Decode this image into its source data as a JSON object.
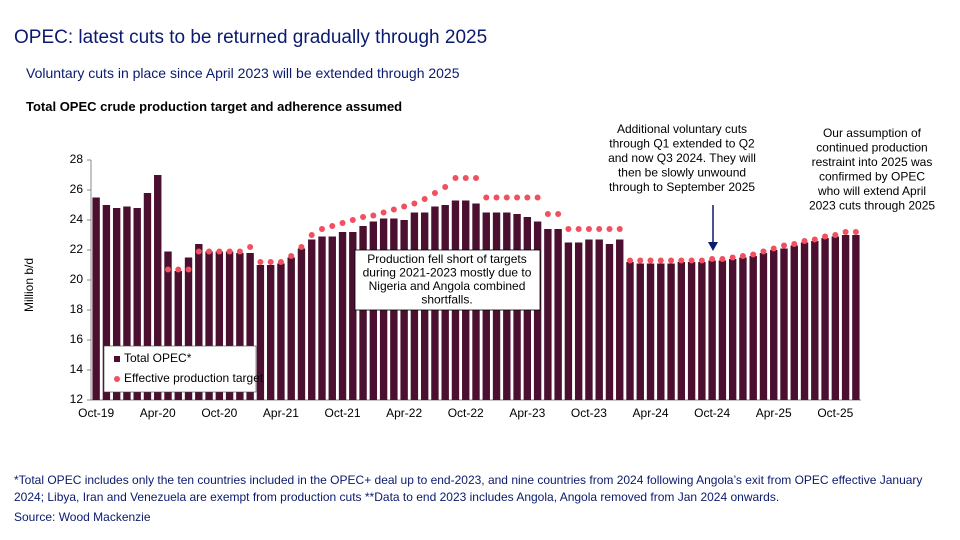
{
  "chart_data": {
    "type": "bar",
    "title": "OPEC: latest cuts to be returned gradually through 2025",
    "subtitle": "Voluntary cuts in place since April 2023 will be extended through 2025",
    "chart_title": "Total OPEC crude production target and adherence assumed",
    "y_label": "Million b/d",
    "categories": [
      "Oct-19",
      null,
      null,
      null,
      null,
      null,
      "Apr-20",
      null,
      null,
      null,
      null,
      null,
      "Oct-20",
      null,
      null,
      null,
      null,
      null,
      "Apr-21",
      null,
      null,
      null,
      null,
      null,
      "Oct-21",
      null,
      null,
      null,
      null,
      null,
      "Apr-22",
      null,
      null,
      null,
      null,
      null,
      "Oct-22",
      null,
      null,
      null,
      null,
      null,
      "Apr-23",
      null,
      null,
      null,
      null,
      null,
      "Oct-23",
      null,
      null,
      null,
      null,
      null,
      "Apr-24",
      null,
      null,
      null,
      null,
      null,
      "Oct-24",
      null,
      null,
      null,
      null,
      null,
      "Apr-25",
      null,
      null,
      null,
      null,
      null,
      "Oct-25",
      null,
      null
    ],
    "series": [
      {
        "name": "Total OPEC*",
        "color": "#4b0f2f",
        "kind": "bar",
        "values": [
          25.5,
          25.0,
          24.8,
          24.9,
          24.8,
          25.8,
          27.0,
          21.9,
          20.6,
          21.5,
          22.4,
          21.9,
          21.9,
          21.9,
          21.8,
          21.8,
          21.0,
          21.0,
          21.1,
          21.5,
          22.1,
          22.7,
          22.9,
          22.9,
          23.2,
          23.2,
          23.6,
          23.9,
          24.1,
          24.1,
          24.0,
          24.5,
          24.5,
          24.9,
          25.0,
          25.3,
          25.3,
          25.1,
          24.5,
          24.5,
          24.5,
          24.4,
          24.2,
          23.9,
          23.4,
          23.4,
          22.5,
          22.5,
          22.7,
          22.7,
          22.4,
          22.7,
          21.2,
          21.1,
          21.1,
          21.1,
          21.1,
          21.2,
          21.2,
          21.2,
          21.3,
          21.3,
          21.4,
          21.5,
          21.6,
          21.8,
          22.0,
          22.1,
          22.3,
          22.5,
          22.6,
          22.8,
          22.9,
          23.0,
          23.0
        ]
      },
      {
        "name": "Effective production target",
        "color": "#f0505f",
        "kind": "dot",
        "values": [
          null,
          null,
          null,
          null,
          null,
          null,
          null,
          20.7,
          20.7,
          20.7,
          21.9,
          21.9,
          21.9,
          21.9,
          21.9,
          22.2,
          21.2,
          21.2,
          21.2,
          21.6,
          22.2,
          23.0,
          23.4,
          23.6,
          23.8,
          24.0,
          24.2,
          24.3,
          24.5,
          24.7,
          24.9,
          25.1,
          25.4,
          25.8,
          26.2,
          26.8,
          26.8,
          26.8,
          25.5,
          25.5,
          25.5,
          25.5,
          25.5,
          25.5,
          24.4,
          24.4,
          23.4,
          23.4,
          23.4,
          23.4,
          23.4,
          23.4,
          21.3,
          21.3,
          21.3,
          21.3,
          21.3,
          21.3,
          21.3,
          21.3,
          21.4,
          21.4,
          21.5,
          21.6,
          21.7,
          21.9,
          22.1,
          22.3,
          22.4,
          22.6,
          22.7,
          22.9,
          23.0,
          23.2,
          23.2
        ]
      }
    ],
    "ylim": [
      12,
      28
    ],
    "yticks": [
      12,
      14,
      16,
      18,
      20,
      22,
      24,
      26,
      28
    ],
    "annotations": [
      {
        "lines": [
          "Additional voluntary  cuts",
          "through Q1 extended to Q2",
          "and now Q3 2024. They will",
          "then be slowly unwound",
          "through to September 2025"
        ]
      },
      {
        "lines": [
          "Our assumption of",
          "continued production",
          "restraint into 2025 was",
          "confirmed by OPEC",
          "who will extend April",
          "2023 cuts through 2025"
        ]
      },
      {
        "lines": [
          "Production fell short of targets",
          "during 2021-2023 mostly due to",
          "Nigeria and Angola combined",
          "shortfalls."
        ]
      }
    ],
    "footnote": "*Total OPEC includes only the ten countries included in the OPEC+ deal up to end-2023, and nine countries from 2024 following Angola’s exit from OPEC effective January 2024; Libya, Iran and Venezuela are exempt from production cuts **Data to end 2023 includes Angola, Angola removed from Jan 2024 onwards.",
    "source": "Source: Wood Mackenzie"
  }
}
